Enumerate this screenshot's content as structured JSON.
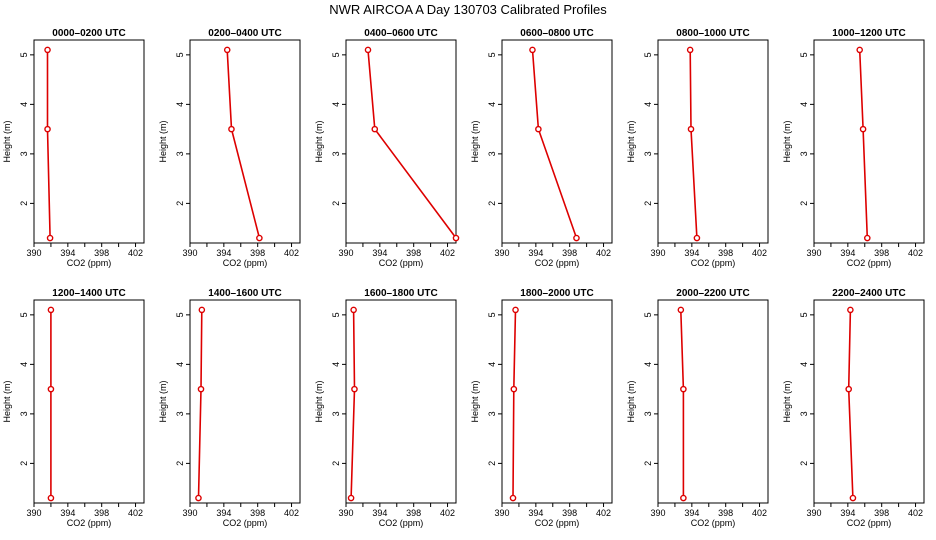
{
  "figure": {
    "title": "NWR AIRCOA A  Day 130703  Calibrated Profiles",
    "line_color": "#dd0000",
    "axis_color": "#000000"
  },
  "chart_data": [
    {
      "type": "line",
      "title": "0000–0200 UTC",
      "xlabel": "CO2 (ppm)",
      "ylabel": "Height (m)",
      "xlim": [
        390,
        403
      ],
      "ylim": [
        1.2,
        5.3
      ],
      "xticks": [
        "390",
        "394",
        "398",
        "402"
      ],
      "yticks": [
        "2",
        "3",
        "4",
        "5"
      ],
      "x": [
        391.6,
        391.6,
        391.9
      ],
      "y": [
        5.1,
        3.5,
        1.3
      ]
    },
    {
      "type": "line",
      "title": "0200–0400 UTC",
      "xlabel": "CO2 (ppm)",
      "ylabel": "Height (m)",
      "xlim": [
        390,
        403
      ],
      "ylim": [
        1.2,
        5.3
      ],
      "xticks": [
        "390",
        "394",
        "398",
        "402"
      ],
      "yticks": [
        "2",
        "3",
        "4",
        "5"
      ],
      "x": [
        394.4,
        394.9,
        398.2
      ],
      "y": [
        5.1,
        3.5,
        1.3
      ]
    },
    {
      "type": "line",
      "title": "0400–0600 UTC",
      "xlabel": "CO2 (ppm)",
      "ylabel": "Height (m)",
      "xlim": [
        390,
        403
      ],
      "ylim": [
        1.2,
        5.3
      ],
      "xticks": [
        "390",
        "394",
        "398",
        "402"
      ],
      "yticks": [
        "2",
        "3",
        "4",
        "5"
      ],
      "x": [
        392.6,
        393.4,
        403.0
      ],
      "y": [
        5.1,
        3.5,
        1.3
      ]
    },
    {
      "type": "line",
      "title": "0600–0800 UTC",
      "xlabel": "CO2 (ppm)",
      "ylabel": "Height (m)",
      "xlim": [
        390,
        403
      ],
      "ylim": [
        1.2,
        5.3
      ],
      "xticks": [
        "390",
        "394",
        "398",
        "402"
      ],
      "yticks": [
        "2",
        "3",
        "4",
        "5"
      ],
      "x": [
        393.6,
        394.3,
        398.8
      ],
      "y": [
        5.1,
        3.5,
        1.3
      ]
    },
    {
      "type": "line",
      "title": "0800–1000 UTC",
      "xlabel": "CO2 (ppm)",
      "ylabel": "Height (m)",
      "xlim": [
        390,
        403
      ],
      "ylim": [
        1.2,
        5.3
      ],
      "xticks": [
        "390",
        "394",
        "398",
        "402"
      ],
      "yticks": [
        "2",
        "3",
        "4",
        "5"
      ],
      "x": [
        393.8,
        393.9,
        394.6
      ],
      "y": [
        5.1,
        3.5,
        1.3
      ]
    },
    {
      "type": "line",
      "title": "1000–1200 UTC",
      "xlabel": "CO2 (ppm)",
      "ylabel": "Height (m)",
      "xlim": [
        390,
        403
      ],
      "ylim": [
        1.2,
        5.3
      ],
      "xticks": [
        "390",
        "394",
        "398",
        "402"
      ],
      "yticks": [
        "2",
        "3",
        "4",
        "5"
      ],
      "x": [
        395.4,
        395.8,
        396.3
      ],
      "y": [
        5.1,
        3.5,
        1.3
      ]
    },
    {
      "type": "line",
      "title": "1200–1400 UTC",
      "xlabel": "CO2 (ppm)",
      "ylabel": "Height (m)",
      "xlim": [
        390,
        403
      ],
      "ylim": [
        1.2,
        5.3
      ],
      "xticks": [
        "390",
        "394",
        "398",
        "402"
      ],
      "yticks": [
        "2",
        "3",
        "4",
        "5"
      ],
      "x": [
        392.0,
        392.0,
        392.0
      ],
      "y": [
        5.1,
        3.5,
        1.3
      ]
    },
    {
      "type": "line",
      "title": "1400–1600 UTC",
      "xlabel": "CO2 (ppm)",
      "ylabel": "Height (m)",
      "xlim": [
        390,
        403
      ],
      "ylim": [
        1.2,
        5.3
      ],
      "xticks": [
        "390",
        "394",
        "398",
        "402"
      ],
      "yticks": [
        "2",
        "3",
        "4",
        "5"
      ],
      "x": [
        391.4,
        391.3,
        391.0
      ],
      "y": [
        5.1,
        3.5,
        1.3
      ]
    },
    {
      "type": "line",
      "title": "1600–1800 UTC",
      "xlabel": "CO2 (ppm)",
      "ylabel": "Height (m)",
      "xlim": [
        390,
        403
      ],
      "ylim": [
        1.2,
        5.3
      ],
      "xticks": [
        "390",
        "394",
        "398",
        "402"
      ],
      "yticks": [
        "2",
        "3",
        "4",
        "5"
      ],
      "x": [
        390.9,
        391.0,
        390.6
      ],
      "y": [
        5.1,
        3.5,
        1.3
      ]
    },
    {
      "type": "line",
      "title": "1800–2000 UTC",
      "xlabel": "CO2 (ppm)",
      "ylabel": "Height (m)",
      "xlim": [
        390,
        403
      ],
      "ylim": [
        1.2,
        5.3
      ],
      "xticks": [
        "390",
        "394",
        "398",
        "402"
      ],
      "yticks": [
        "2",
        "3",
        "4",
        "5"
      ],
      "x": [
        391.6,
        391.4,
        391.3
      ],
      "y": [
        5.1,
        3.5,
        1.3
      ]
    },
    {
      "type": "line",
      "title": "2000–2200 UTC",
      "xlabel": "CO2 (ppm)",
      "ylabel": "Height (m)",
      "xlim": [
        390,
        403
      ],
      "ylim": [
        1.2,
        5.3
      ],
      "xticks": [
        "390",
        "394",
        "398",
        "402"
      ],
      "yticks": [
        "2",
        "3",
        "4",
        "5"
      ],
      "x": [
        392.7,
        393.0,
        393.0
      ],
      "y": [
        5.1,
        3.5,
        1.3
      ]
    },
    {
      "type": "line",
      "title": "2200–2400 UTC",
      "xlabel": "CO2 (ppm)",
      "ylabel": "Height (m)",
      "xlim": [
        390,
        403
      ],
      "ylim": [
        1.2,
        5.3
      ],
      "xticks": [
        "390",
        "394",
        "398",
        "402"
      ],
      "yticks": [
        "2",
        "3",
        "4",
        "5"
      ],
      "x": [
        394.3,
        394.1,
        394.6
      ],
      "y": [
        5.1,
        3.5,
        1.3
      ]
    }
  ]
}
